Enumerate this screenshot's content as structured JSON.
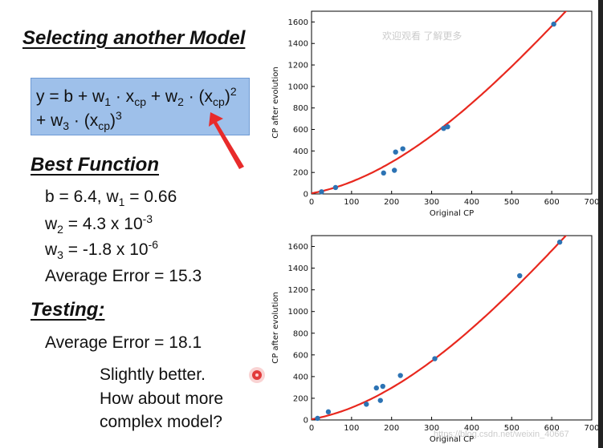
{
  "slide": {
    "title": "Selecting another Model",
    "formula": {
      "line1": {
        "y": "y = b + w",
        "s1": "1",
        "m1": " · x",
        "cp1": "cp",
        "p2": " + w",
        "s2": "2",
        "m2": " · (x",
        "cp2": "cp",
        "close": ")",
        "exp2": "2"
      },
      "line2": {
        "p": "+ w",
        "s3": "3",
        "m": " · (x",
        "cp": "cp",
        "close": ")",
        "exp3": "3"
      }
    },
    "best_function_heading": "Best Function",
    "params": {
      "b_w1": {
        "b": "b = 6.4, w",
        "sub": "1",
        "rest": " = 0.66"
      },
      "w2": {
        "w": "w",
        "sub": "2",
        "rest": " = 4.3 x 10",
        "sup": "-3"
      },
      "w3": {
        "w": "w",
        "sub": "3",
        "rest": " = -1.8 x 10",
        "sup": "-6"
      },
      "avg_train": "Average Error = 15.3"
    },
    "testing_heading": "Testing:",
    "avg_test": "Average Error = 18.1",
    "comment": [
      "Slightly better.",
      "How about more",
      "complex model?"
    ],
    "watermark_top": "欢迎观看  了解更多",
    "watermark_bottom": "https://blog.csdn.net/weixin_40667"
  },
  "colors": {
    "fit_line": "#e8281e",
    "points": "#2c73b4",
    "formula_bg": "#9ec0ea",
    "arrow": "#e82b2b"
  },
  "chart_data": [
    {
      "type": "scatter",
      "xlabel": "Original CP",
      "ylabel": "CP after evolution",
      "xlim": [
        0,
        700
      ],
      "ylim": [
        0,
        1700
      ],
      "xticks": [
        0,
        100,
        200,
        300,
        400,
        500,
        600,
        700
      ],
      "yticks": [
        0,
        200,
        400,
        600,
        800,
        1000,
        1200,
        1400,
        1600
      ],
      "points": {
        "x": [
          25,
          60,
          180,
          207,
          210,
          228,
          330,
          340,
          605
        ],
        "y": [
          20,
          60,
          195,
          220,
          390,
          420,
          610,
          625,
          1580
        ]
      },
      "curve": {
        "b": 6.4,
        "w1": 0.66,
        "w2": 0.0043,
        "w3": -1.8e-06
      },
      "grid": false
    },
    {
      "type": "scatter",
      "xlabel": "Original CP",
      "ylabel": "CP after evolution",
      "xlim": [
        0,
        700
      ],
      "ylim": [
        0,
        1700
      ],
      "xticks": [
        0,
        100,
        200,
        300,
        400,
        500,
        600,
        700
      ],
      "yticks": [
        0,
        200,
        400,
        600,
        800,
        1000,
        1200,
        1400,
        1600
      ],
      "points": {
        "x": [
          15,
          42,
          137,
          162,
          172,
          178,
          222,
          308,
          520,
          620
        ],
        "y": [
          15,
          75,
          145,
          295,
          180,
          310,
          410,
          565,
          1330,
          1640
        ]
      },
      "curve": {
        "b": 6.4,
        "w1": 0.66,
        "w2": 0.0043,
        "w3": -1.8e-06
      },
      "grid": false
    }
  ]
}
